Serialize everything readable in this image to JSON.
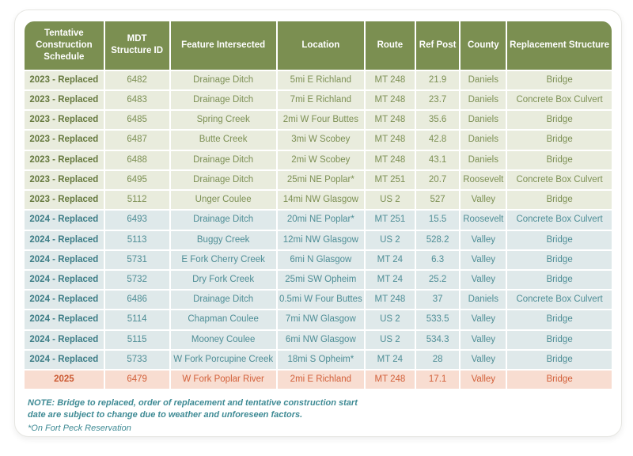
{
  "table": {
    "column_ids": [
      "tentative-construction-schedule",
      "mdt-structure-id",
      "feature-intersected",
      "location",
      "route",
      "ref-post",
      "county",
      "replacement-structure"
    ],
    "column_widths_pct": [
      13.7,
      11.1,
      18.3,
      15.0,
      8.5,
      7.5,
      7.8,
      18.1
    ],
    "columns": [
      "Tentative Construction Schedule",
      "MDT Structure ID",
      "Feature Intersected",
      "Location",
      "Route",
      "Ref Post",
      "County",
      "Replacement Structure"
    ],
    "rows": [
      {
        "group": "2023",
        "cells": [
          "2023 - Replaced",
          "6482",
          "Drainage Ditch",
          "5mi E Richland",
          "MT 248",
          "21.9",
          "Daniels",
          "Bridge"
        ]
      },
      {
        "group": "2023",
        "cells": [
          "2023 - Replaced",
          "6483",
          "Drainage Ditch",
          "7mi E Richland",
          "MT 248",
          "23.7",
          "Daniels",
          "Concrete Box Culvert"
        ]
      },
      {
        "group": "2023",
        "cells": [
          "2023 - Replaced",
          "6485",
          "Spring Creek",
          "2mi W Four Buttes",
          "MT 248",
          "35.6",
          "Daniels",
          "Bridge"
        ]
      },
      {
        "group": "2023",
        "cells": [
          "2023 - Replaced",
          "6487",
          "Butte Creek",
          "3mi W Scobey",
          "MT 248",
          "42.8",
          "Daniels",
          "Bridge"
        ]
      },
      {
        "group": "2023",
        "cells": [
          "2023 - Replaced",
          "6488",
          "Drainage Ditch",
          "2mi W Scobey",
          "MT 248",
          "43.1",
          "Daniels",
          "Bridge"
        ]
      },
      {
        "group": "2023",
        "cells": [
          "2023 - Replaced",
          "6495",
          "Drainage Ditch",
          "25mi NE Poplar*",
          "MT 251",
          "20.7",
          "Roosevelt",
          "Concrete Box Culvert"
        ]
      },
      {
        "group": "2023",
        "cells": [
          "2023 - Replaced",
          "5112",
          "Unger Coulee",
          "14mi NW Glasgow",
          "US 2",
          "527",
          "Valley",
          "Bridge"
        ]
      },
      {
        "group": "2024",
        "cells": [
          "2024 - Replaced",
          "6493",
          "Drainage Ditch",
          "20mi NE Poplar*",
          "MT 251",
          "15.5",
          "Roosevelt",
          "Concrete Box Culvert"
        ]
      },
      {
        "group": "2024",
        "cells": [
          "2024 - Replaced",
          "5113",
          "Buggy Creek",
          "12mi NW Glasgow",
          "US 2",
          "528.2",
          "Valley",
          "Bridge"
        ]
      },
      {
        "group": "2024",
        "cells": [
          "2024 - Replaced",
          "5731",
          "E Fork Cherry Creek",
          "6mi N Glasgow",
          "MT 24",
          "6.3",
          "Valley",
          "Bridge"
        ]
      },
      {
        "group": "2024",
        "cells": [
          "2024 - Replaced",
          "5732",
          "Dry Fork Creek",
          "25mi SW Opheim",
          "MT 24",
          "25.2",
          "Valley",
          "Bridge"
        ]
      },
      {
        "group": "2024",
        "cells": [
          "2024 - Replaced",
          "6486",
          "Drainage Ditch",
          "0.5mi W Four Buttes",
          "MT 248",
          "37",
          "Daniels",
          "Concrete Box Culvert"
        ]
      },
      {
        "group": "2024",
        "cells": [
          "2024 - Replaced",
          "5114",
          "Chapman Coulee",
          "7mi NW Glasgow",
          "US 2",
          "533.5",
          "Valley",
          "Bridge"
        ]
      },
      {
        "group": "2024",
        "cells": [
          "2024 - Replaced",
          "5115",
          "Mooney Coulee",
          "6mi NW Glasgow",
          "US 2",
          "534.3",
          "Valley",
          "Bridge"
        ]
      },
      {
        "group": "2024",
        "cells": [
          "2024 - Replaced",
          "5733",
          "W Fork Porcupine Creek",
          "18mi S Opheim*",
          "MT 24",
          "28",
          "Valley",
          "Bridge"
        ]
      },
      {
        "group": "2025",
        "cells": [
          "2025",
          "6479",
          "W Fork Poplar River",
          "2mi E Richland",
          "MT 248",
          "17.1",
          "Valley",
          "Bridge"
        ]
      }
    ]
  },
  "notes": {
    "main": "NOTE: Bridge to replaced, order of replacement and tentative construction start date are subject to change due to weather and unforeseen factors.",
    "footnote": "*On Fort Peck Reservation"
  },
  "colors": {
    "header_bg": "#7b8f51",
    "group_2023_bg": "#e9ecdd",
    "group_2023_text": "#7d9055",
    "group_2024_bg": "#dfe9ea",
    "group_2024_text": "#4f8e96",
    "group_2025_bg": "#f8ddd1",
    "group_2025_text": "#d2603a",
    "note_text": "#3e8a94"
  }
}
